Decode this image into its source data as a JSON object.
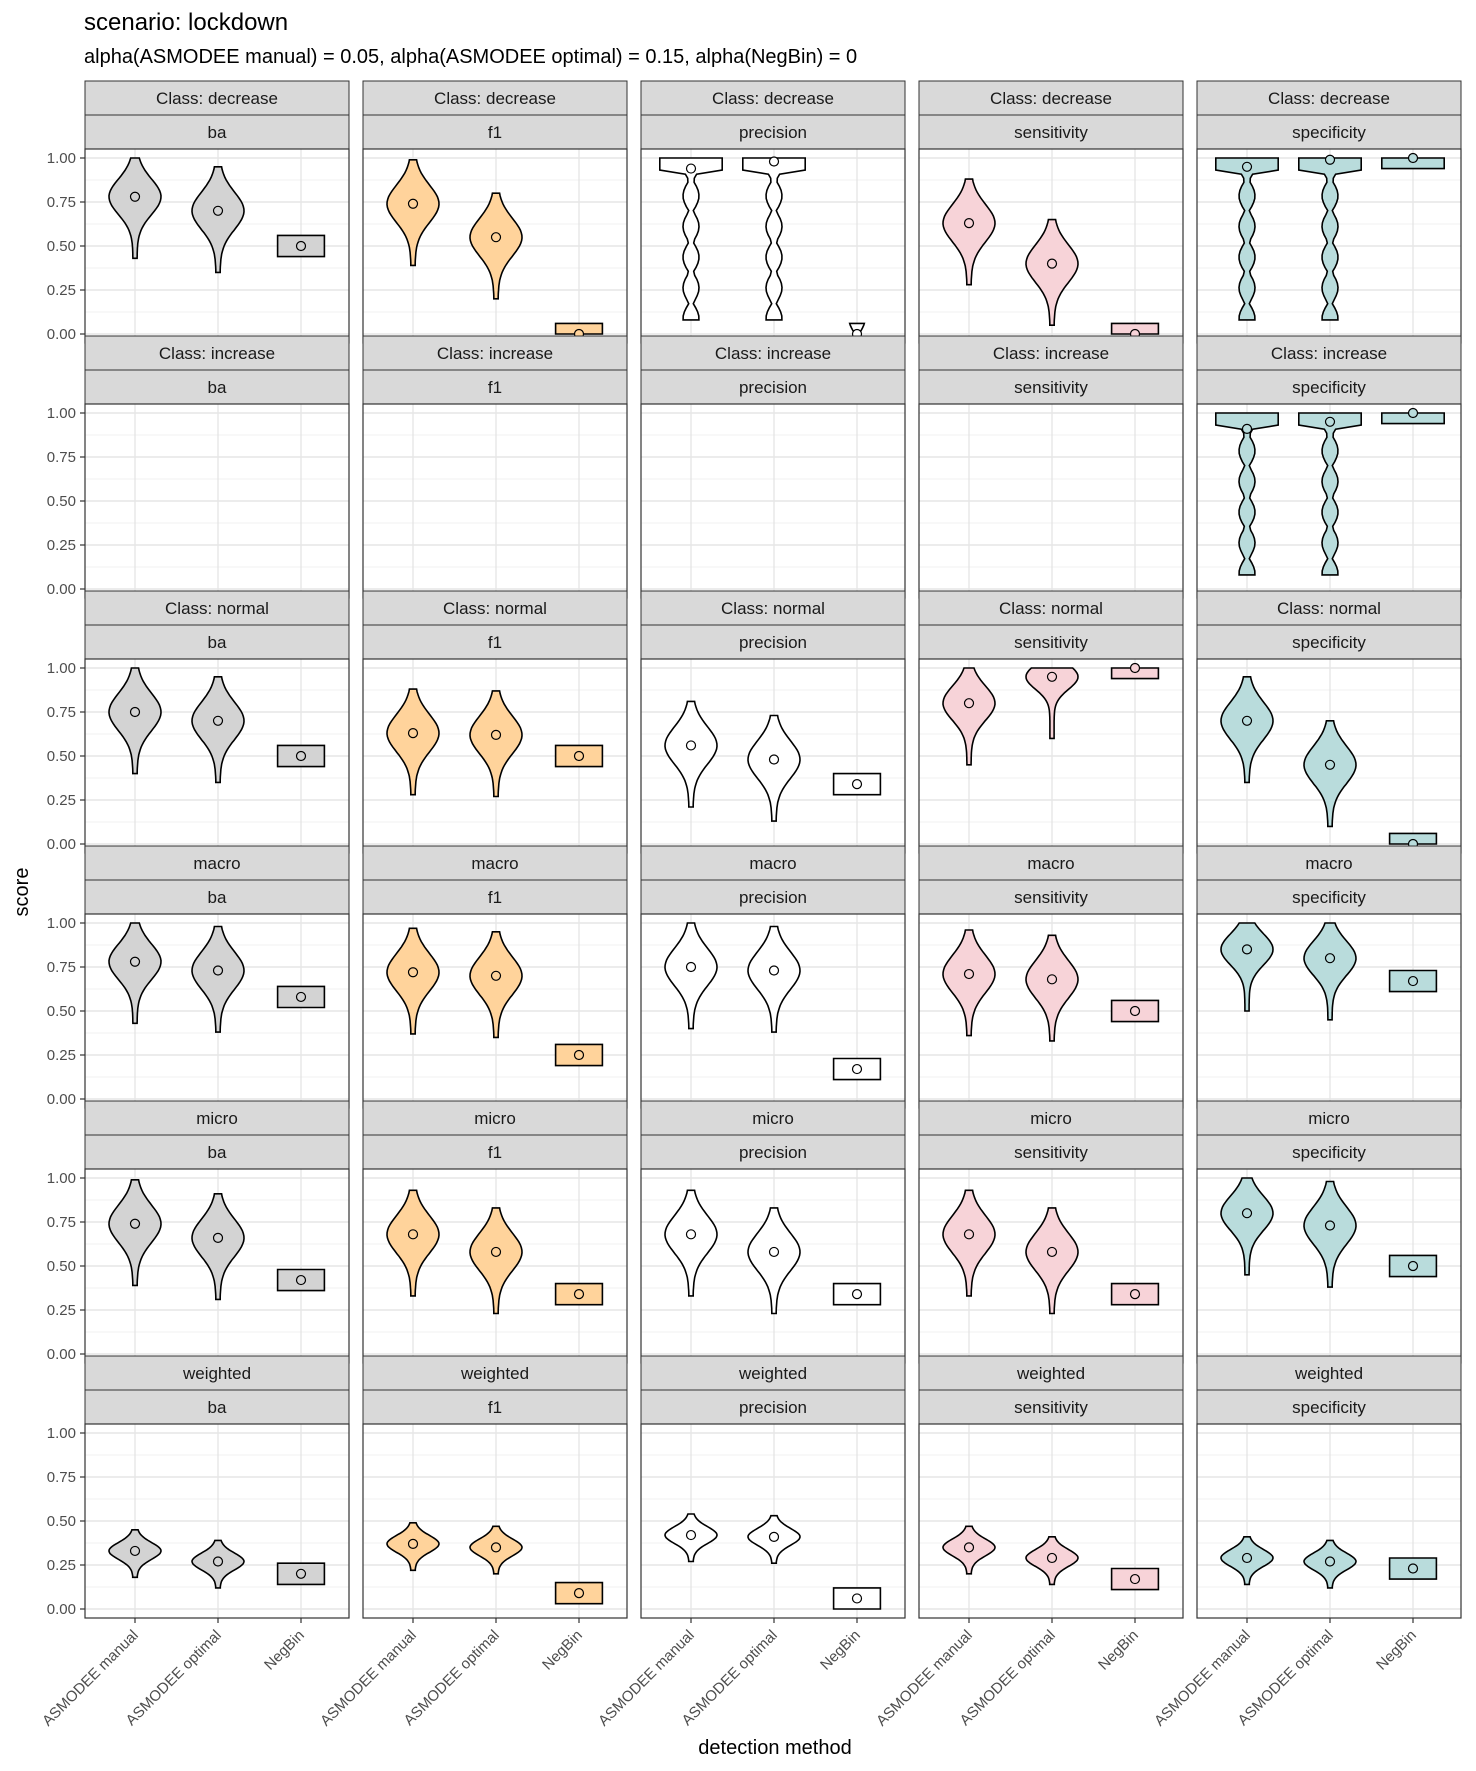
{
  "chart_data": {
    "type": "violin",
    "title": "scenario:  lockdown",
    "subtitle": "alpha(ASMODEE manual) = 0.05, alpha(ASMODEE optimal) = 0.15, alpha(NegBin) = 0",
    "xlabel": "detection method",
    "ylabel": "score",
    "ylim": [
      0,
      1
    ],
    "yticks": [
      "0.00",
      "0.25",
      "0.50",
      "0.75",
      "1.00"
    ],
    "categories": [
      "ASMODEE manual",
      "ASMODEE optimal",
      "NegBin"
    ],
    "row_facets": [
      "Class: decrease",
      "Class: increase",
      "Class: normal",
      "macro",
      "micro",
      "weighted"
    ],
    "col_facets": [
      "ba",
      "f1",
      "precision",
      "sensitivity",
      "specificity"
    ],
    "fill_colors": {
      "ba": "#d3d3d3",
      "f1": "#ffd39b",
      "precision": "#ffffff",
      "sensitivity": "#f7d3d8",
      "specificity": "#b9dcdc"
    },
    "grid": true,
    "legend": "none",
    "mean_values": [
      [
        [
          0.78,
          0.7,
          0.5
        ],
        [
          0.74,
          0.55,
          0.0
        ],
        [
          0.94,
          0.98,
          0.0
        ],
        [
          0.63,
          0.4,
          0.0
        ],
        [
          0.95,
          0.99,
          1.0
        ]
      ],
      [
        [
          null,
          null,
          null
        ],
        [
          null,
          null,
          null
        ],
        [
          null,
          null,
          null
        ],
        [
          null,
          null,
          null
        ],
        [
          0.91,
          0.95,
          1.0
        ]
      ],
      [
        [
          0.75,
          0.7,
          0.5
        ],
        [
          0.63,
          0.62,
          0.5
        ],
        [
          0.56,
          0.48,
          0.34
        ],
        [
          0.8,
          0.95,
          1.0
        ],
        [
          0.7,
          0.45,
          0.0
        ]
      ],
      [
        [
          0.78,
          0.73,
          0.58
        ],
        [
          0.72,
          0.7,
          0.25
        ],
        [
          0.75,
          0.73,
          0.17
        ],
        [
          0.71,
          0.68,
          0.5
        ],
        [
          0.85,
          0.8,
          0.67
        ]
      ],
      [
        [
          0.74,
          0.66,
          0.42
        ],
        [
          0.68,
          0.58,
          0.34
        ],
        [
          0.68,
          0.58,
          0.34
        ],
        [
          0.68,
          0.58,
          0.34
        ],
        [
          0.8,
          0.73,
          0.5
        ]
      ],
      [
        [
          0.33,
          0.27,
          0.2
        ],
        [
          0.37,
          0.35,
          0.09
        ],
        [
          0.42,
          0.41,
          0.06
        ],
        [
          0.35,
          0.29,
          0.17
        ],
        [
          0.29,
          0.27,
          0.23
        ]
      ]
    ]
  }
}
